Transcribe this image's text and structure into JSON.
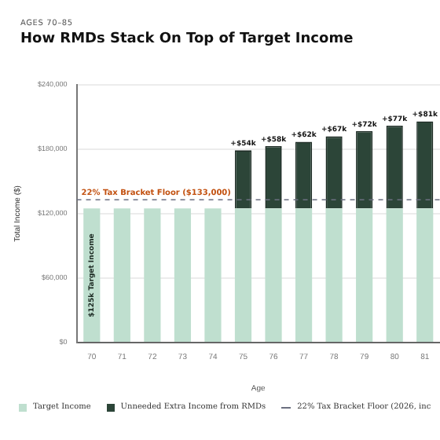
{
  "chart_data": {
    "type": "bar",
    "subtitle": "AGES 70–85",
    "title": "How RMDs Stack On Top of Target Income",
    "xlabel": "Age",
    "ylabel": "Total Income ($)",
    "categories": [
      "70",
      "71",
      "72",
      "73",
      "74",
      "75",
      "76",
      "77",
      "78",
      "79",
      "80",
      "81"
    ],
    "stacked": true,
    "series": [
      {
        "name": "Target Income",
        "color": "#bfdfcf",
        "values": [
          125000,
          125000,
          125000,
          125000,
          125000,
          125000,
          125000,
          125000,
          125000,
          125000,
          125000,
          125000
        ]
      },
      {
        "name": "Unneeded Extra Income from RMDs",
        "color": "#2c4538",
        "values": [
          null,
          null,
          null,
          null,
          null,
          54000,
          58000,
          62000,
          67000,
          72000,
          77000,
          81000
        ],
        "value_labels": [
          null,
          null,
          null,
          null,
          null,
          "+$54k",
          "+$58k",
          "+$62k",
          "+$67k",
          "+$72k",
          "+$77k",
          "+$81k"
        ]
      }
    ],
    "ylim": [
      0,
      240000
    ],
    "yticks": [
      {
        "value": 0,
        "label": "$0"
      },
      {
        "value": 60000,
        "label": "$60,000"
      },
      {
        "value": 120000,
        "label": "$120,000"
      },
      {
        "value": 180000,
        "label": "$180,000"
      },
      {
        "value": 240000,
        "label": "$240,000"
      }
    ],
    "grid": "y",
    "legend": "bottom",
    "ref_lines": [
      {
        "axis": "y",
        "value": 133000,
        "label": "22% Tax Bracket Floor ($133,000)",
        "color": "#6b6f80",
        "line_style": "dashed"
      }
    ],
    "annotations": [
      "$125k Target Income",
      "22% Tax Bracket Floor (2026, inc"
    ]
  }
}
